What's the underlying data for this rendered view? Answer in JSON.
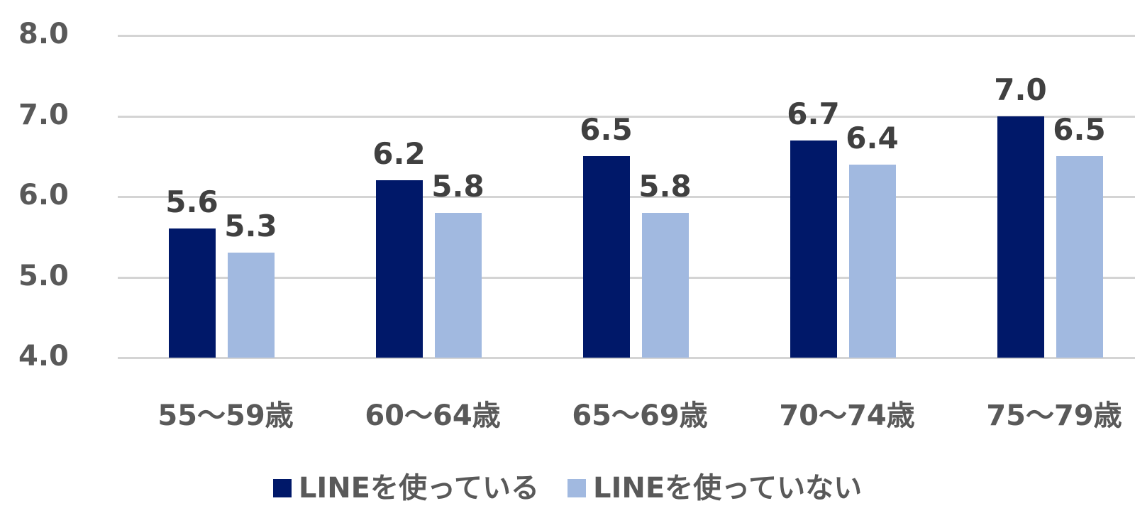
{
  "chart_data": {
    "type": "bar",
    "title": "",
    "xlabel": "",
    "ylabel": "",
    "ylim": [
      4.0,
      8.0
    ],
    "yticks": [
      "8.0",
      "7.0",
      "6.0",
      "5.0",
      "4.0"
    ],
    "grid": true,
    "legend_position": "bottom",
    "categories": [
      "55～59歳",
      "60～64歳",
      "65～69歳",
      "70～74歳",
      "75～79歳"
    ],
    "series": [
      {
        "name": "LINEを使っている",
        "color": "#001869",
        "values": [
          5.6,
          6.2,
          6.5,
          6.7,
          7.0
        ],
        "labels": [
          "5.6",
          "6.2",
          "6.5",
          "6.7",
          "7.0"
        ]
      },
      {
        "name": "LINEを使っていない",
        "color": "#a1b9e0",
        "values": [
          5.3,
          5.8,
          5.8,
          6.4,
          6.5
        ],
        "labels": [
          "5.3",
          "5.8",
          "5.8",
          "6.4",
          "6.5"
        ]
      }
    ]
  }
}
